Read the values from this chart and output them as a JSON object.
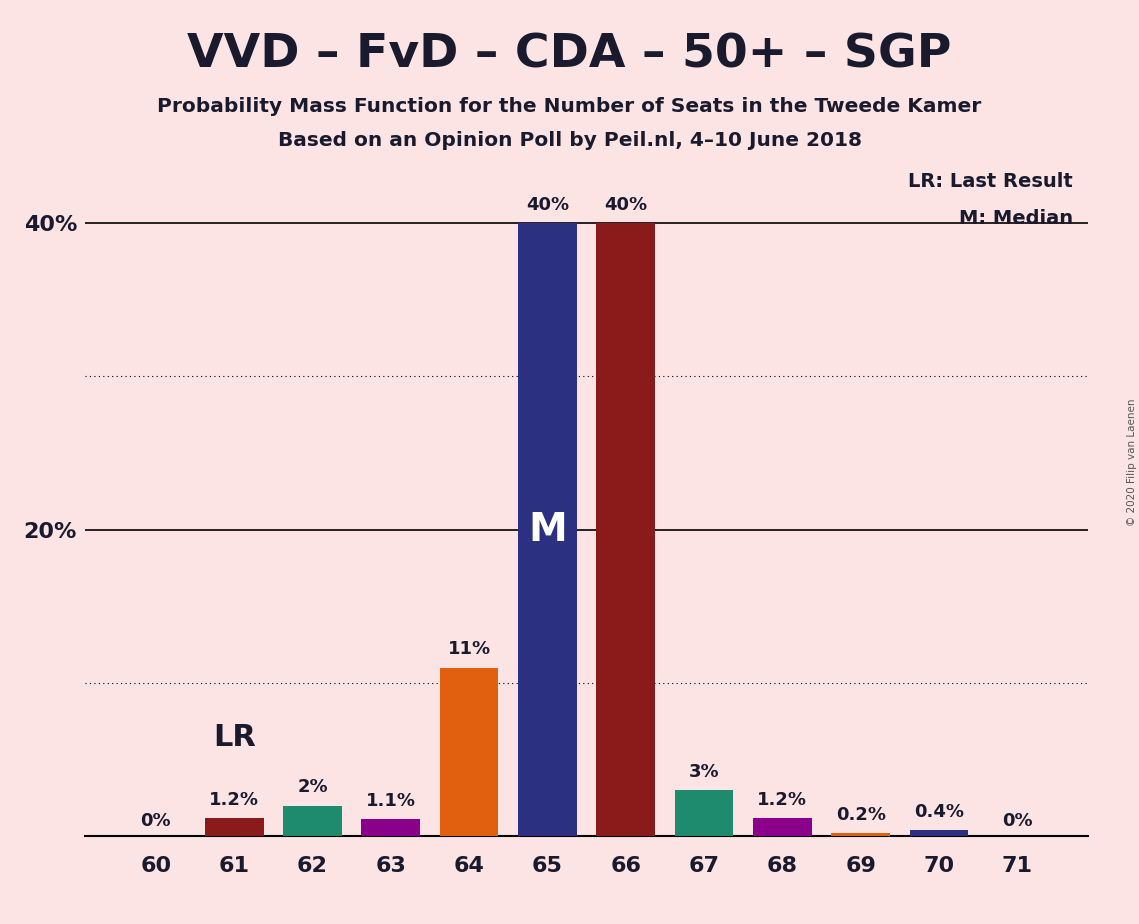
{
  "title": "VVD – FvD – CDA – 50+ – SGP",
  "subtitle1": "Probability Mass Function for the Number of Seats in the Tweede Kamer",
  "subtitle2": "Based on an Opinion Poll by Peil.nl, 4–10 June 2018",
  "copyright": "© 2020 Filip van Laenen",
  "seats": [
    60,
    61,
    62,
    63,
    64,
    65,
    66,
    67,
    68,
    69,
    70,
    71
  ],
  "values": [
    0.0,
    1.2,
    2.0,
    1.1,
    11.0,
    40.0,
    40.0,
    3.0,
    1.2,
    0.2,
    0.4,
    0.0
  ],
  "labels": [
    "0%",
    "1.2%",
    "2%",
    "1.1%",
    "11%",
    "40%",
    "40%",
    "3%",
    "1.2%",
    "0.2%",
    "0.4%",
    "0%"
  ],
  "bar_colors": [
    "#f5d5d5",
    "#8b1a1a",
    "#1e8b6e",
    "#8b008b",
    "#e06010",
    "#2b3080",
    "#8b1a1a",
    "#1e8b6e",
    "#8b008b",
    "#e06010",
    "#2b3080",
    "#f5d5d5"
  ],
  "median_seat": 65,
  "lr_seat": 61,
  "lr_label": "LR",
  "median_label": "M",
  "background_color": "#fce4e4",
  "legend_lr": "LR: Last Result",
  "legend_m": "M: Median",
  "ylim_max": 44,
  "solid_gridlines": [
    20,
    40
  ],
  "dotted_gridlines": [
    10,
    30
  ],
  "ytick_positions": [
    20,
    40
  ],
  "ytick_labels": [
    "20%",
    "40%"
  ]
}
